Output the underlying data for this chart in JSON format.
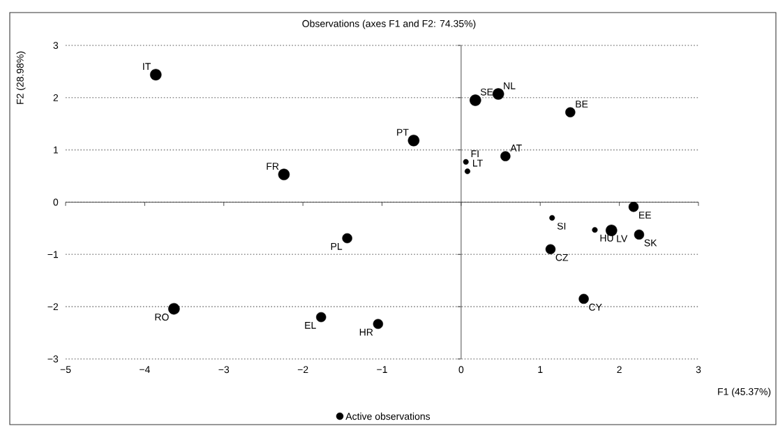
{
  "chart_data": {
    "type": "bubble",
    "title": "Observations (axes F1 and F2: 74.35%)",
    "xlabel": "F1 (45.37%)",
    "ylabel": "F2 (28.98%)",
    "xlim": [
      -5,
      3
    ],
    "ylim": [
      -3,
      3
    ],
    "xticks": [
      {
        "value": -5,
        "label": "−5"
      },
      {
        "value": -4,
        "label": "−4"
      },
      {
        "value": -3,
        "label": "−3"
      },
      {
        "value": -2,
        "label": "−2"
      },
      {
        "value": -1,
        "label": "−1"
      },
      0,
      1,
      2,
      3
    ],
    "yticks": [
      {
        "value": -3,
        "label": "−3"
      },
      {
        "value": -2,
        "label": "−2"
      },
      {
        "value": -1,
        "label": "−1"
      },
      0,
      1,
      2,
      3
    ],
    "grid": "y",
    "legend": "bottom",
    "marker": "circle",
    "ref_lines": [
      {
        "axis": "x",
        "value": 0
      }
    ],
    "series": [
      {
        "name": "Active observations",
        "color": "#000000",
        "x": [
          -3.86,
          -2.24,
          -0.6,
          0.18,
          0.47,
          1.38,
          0.06,
          0.56,
          0.08,
          2.18,
          1.15,
          1.69,
          1.9,
          2.25,
          1.13,
          -1.44,
          1.55,
          -3.63,
          -1.77,
          -1.05
        ],
        "values": [
          2.44,
          0.53,
          1.18,
          1.95,
          2.07,
          1.72,
          0.77,
          0.88,
          0.59,
          -0.09,
          -0.3,
          -0.53,
          -0.54,
          -0.62,
          -0.9,
          -0.69,
          -1.85,
          -2.04,
          -2.2,
          -2.33
        ],
        "sizes": [
          1,
          1,
          1,
          1,
          1,
          0.75,
          0.22,
          0.75,
          0.22,
          0.75,
          0.22,
          0.22,
          1,
          0.75,
          0.75,
          0.75,
          0.75,
          1,
          0.75,
          0.75
        ]
      }
    ],
    "annotations": [
      {
        "text": "IT",
        "x": -3.86,
        "y": 2.44
      },
      {
        "text": "FR",
        "x": -2.24,
        "y": 0.53
      },
      {
        "text": "PT",
        "x": -0.6,
        "y": 1.18
      },
      {
        "text": "SE",
        "x": 0.18,
        "y": 1.95
      },
      {
        "text": "NL",
        "x": 0.47,
        "y": 2.07
      },
      {
        "text": "BE",
        "x": 1.38,
        "y": 1.72
      },
      {
        "text": "FI",
        "x": 0.06,
        "y": 0.77
      },
      {
        "text": "AT",
        "x": 0.56,
        "y": 0.88
      },
      {
        "text": "LT",
        "x": 0.08,
        "y": 0.59
      },
      {
        "text": "EE",
        "x": 2.18,
        "y": -0.09
      },
      {
        "text": "SI",
        "x": 1.15,
        "y": -0.3
      },
      {
        "text": "HU",
        "x": 1.69,
        "y": -0.53
      },
      {
        "text": "LV",
        "x": 1.9,
        "y": -0.54
      },
      {
        "text": "SK",
        "x": 2.25,
        "y": -0.62
      },
      {
        "text": "CZ",
        "x": 1.13,
        "y": -0.9
      },
      {
        "text": "PL",
        "x": -1.44,
        "y": -0.69
      },
      {
        "text": "CY",
        "x": 1.55,
        "y": -1.85
      },
      {
        "text": "RO",
        "x": -3.63,
        "y": -2.04
      },
      {
        "text": "EL",
        "x": -1.77,
        "y": -2.2
      },
      {
        "text": "HR",
        "x": -1.05,
        "y": -2.33
      }
    ]
  }
}
